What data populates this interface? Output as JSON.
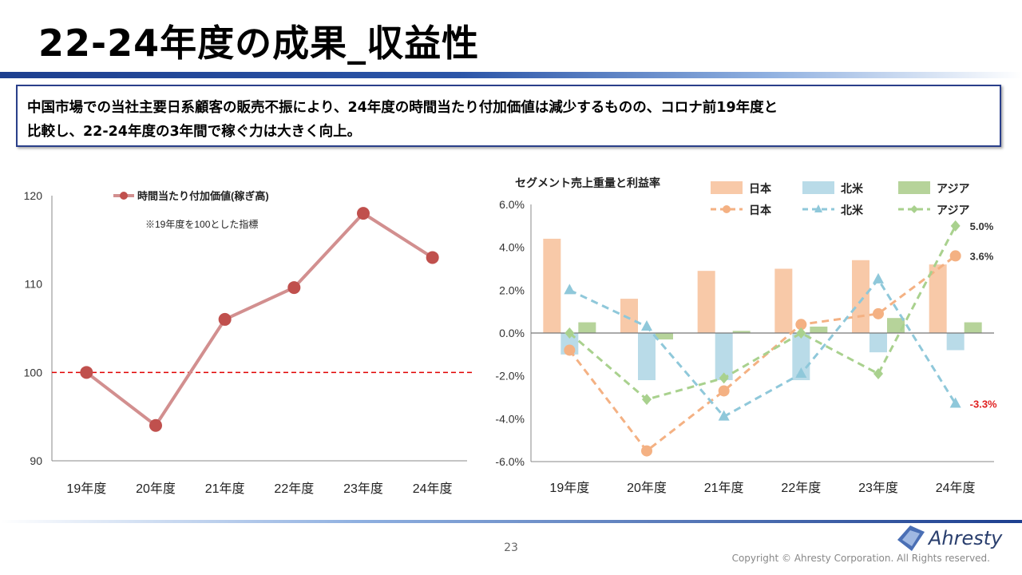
{
  "page": {
    "title": "22-24年度の成果_収益性",
    "summary_line1": "中国市場での当社主要日系顧客の販売不振により、24年度の時間当たり付加価値は減少するものの、コロナ前19年度と",
    "summary_line2": "比較し、22-24年度の3年間で稼ぐ力は大きく向上。",
    "page_number": "23",
    "copyright": "Copyright © Ahresty Corporation. All Rights reserved.",
    "logo_text": "Ahresty"
  },
  "colors": {
    "title_bar": "#1d3f8f",
    "line1": "#d28f8f",
    "marker1": "#c0504d",
    "ref_line": "#e00000",
    "japan": "#f8c9a8",
    "japan_line": "#f4b183",
    "north_america": "#b9dbe8",
    "north_america_line": "#8fc8da",
    "asia": "#b6d39a",
    "asia_line": "#a9d18e",
    "neg_label": "#e02020"
  },
  "chart_data": [
    {
      "type": "line",
      "title": "",
      "legend": "時間当たり付加価値(稼ぎ高)",
      "note": "※19年度を100とした指標",
      "categories": [
        "19年度",
        "20年度",
        "21年度",
        "22年度",
        "23年度",
        "24年度"
      ],
      "values": [
        100,
        94,
        106,
        109.6,
        118,
        113
      ],
      "ylim": [
        90,
        120
      ],
      "yticks": [
        "90",
        "100",
        "110",
        "120"
      ],
      "reference_line": 100
    },
    {
      "type": "bar",
      "title": "セグメント売上重量と利益率",
      "categories": [
        "19年度",
        "20年度",
        "21年度",
        "22年度",
        "23年度",
        "24年度"
      ],
      "ylim": [
        -0.06,
        0.06
      ],
      "yticks": [
        "-6.0%",
        "-4.0%",
        "-2.0%",
        "0.0%",
        "2.0%",
        "4.0%",
        "6.0%"
      ],
      "bar_series": [
        {
          "name": "日本",
          "values": [
            4.4,
            1.6,
            2.9,
            3.0,
            3.4,
            3.2
          ]
        },
        {
          "name": "北米",
          "values": [
            -1.0,
            -2.2,
            -2.2,
            -2.2,
            -0.9,
            -0.8
          ]
        },
        {
          "name": "アジア",
          "values": [
            0.5,
            -0.3,
            0.1,
            0.3,
            0.7,
            0.5
          ]
        }
      ],
      "line_series": [
        {
          "name": "日本",
          "values": [
            -0.8,
            -5.5,
            -2.7,
            0.4,
            0.9,
            3.6
          ]
        },
        {
          "name": "北米",
          "values": [
            2.0,
            0.3,
            -3.9,
            -1.9,
            2.5,
            -3.3
          ]
        },
        {
          "name": "アジア",
          "values": [
            0.0,
            -3.1,
            -2.1,
            0.0,
            -1.9,
            5.0
          ]
        }
      ],
      "data_labels": [
        {
          "series": "アジア",
          "text": "5.0%"
        },
        {
          "series": "日本",
          "text": "3.6%"
        },
        {
          "series": "北米",
          "text": "-3.3%"
        }
      ]
    }
  ]
}
